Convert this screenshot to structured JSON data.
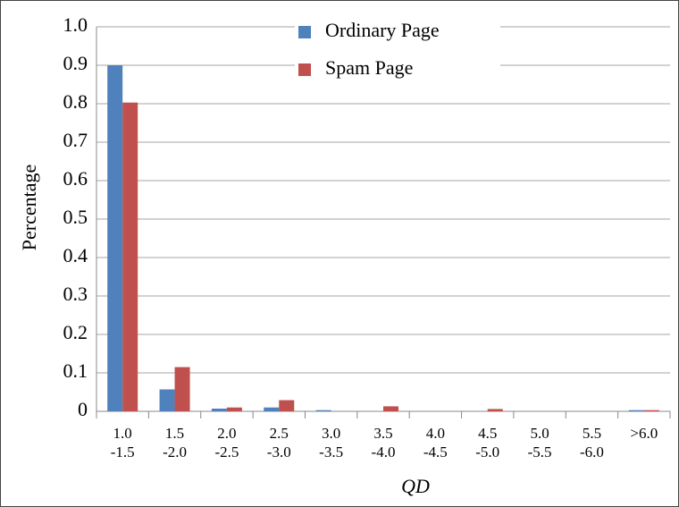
{
  "chart_data": {
    "type": "bar",
    "y_label": "Percentage",
    "x_label": "QD",
    "categories": [
      "1.0\n-1.5",
      "1.5\n-2.0",
      "2.0\n-2.5",
      "2.5\n-3.0",
      "3.0\n-3.5",
      "3.5\n-4.0",
      "4.0\n-4.5",
      "4.5\n-5.0",
      "5.0\n-5.5",
      "5.5\n-6.0",
      ">6.0"
    ],
    "series": [
      {
        "name": "Ordinary Page",
        "color": "#4f81bd",
        "values": [
          0.9,
          0.057,
          0.007,
          0.01,
          0.003,
          0,
          0,
          0,
          0,
          0,
          0.003
        ]
      },
      {
        "name": "Spam Page",
        "color": "#c0504d",
        "values": [
          0.803,
          0.115,
          0.01,
          0.029,
          0,
          0.013,
          0,
          0.006,
          0,
          0,
          0.003
        ]
      }
    ],
    "ylim": [
      0,
      1
    ],
    "yticks": [
      0,
      0.1,
      0.2,
      0.3,
      0.4,
      0.5,
      0.6,
      0.7,
      0.8,
      0.9,
      {
        "value": 1,
        "label": "1.0"
      }
    ],
    "grid": true,
    "legend": "top"
  }
}
